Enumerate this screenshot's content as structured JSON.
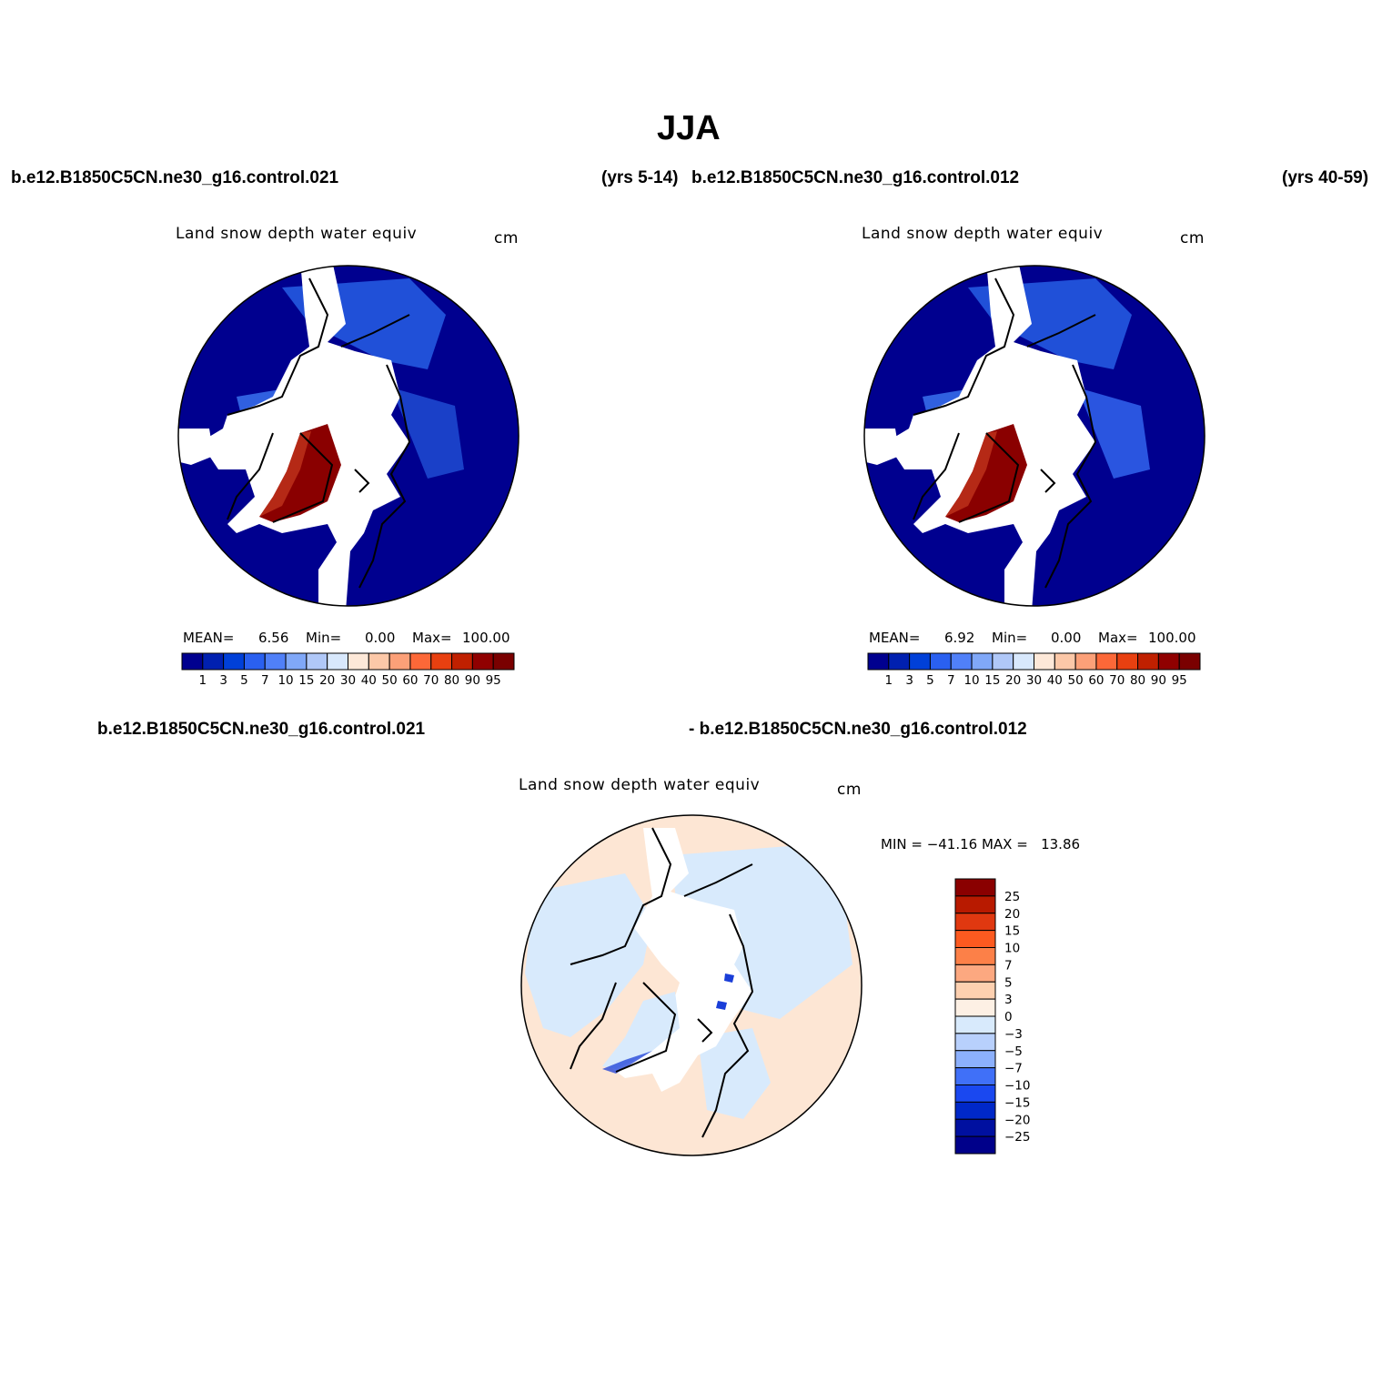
{
  "title": "JJA",
  "top_left_case": "b.e12.B1850C5CN.ne30_g16.control.021",
  "top_left_years": "(yrs 5-14)",
  "top_right_case": "b.e12.B1850C5CN.ne30_g16.control.012",
  "top_right_years": "(yrs 40-59)",
  "bottom_case_a": "b.e12.B1850C5CN.ne30_g16.control.021",
  "bottom_case_b": "- b.e12.B1850C5CN.ne30_g16.control.012",
  "panels": [
    {
      "variable": "Land snow depth water equiv",
      "units": "cm",
      "mean_label": "MEAN=",
      "mean": "6.56",
      "min_label": "Min=",
      "min": "0.00",
      "max_label": "Max=",
      "max": "100.00"
    },
    {
      "variable": "Land snow depth water equiv",
      "units": "cm",
      "mean_label": "MEAN=",
      "mean": "6.92",
      "min_label": "Min=",
      "min": "0.00",
      "max_label": "Max=",
      "max": "100.00"
    }
  ],
  "diff_panel": {
    "variable": "Land snow depth water equiv",
    "units": "cm",
    "minmax": "MIN = −41.16 MAX =   13.86"
  },
  "colorbar_levels": [
    "1",
    "3",
    "5",
    "7",
    "10",
    "15",
    "20",
    "30",
    "40",
    "50",
    "60",
    "70",
    "80",
    "90",
    "95"
  ],
  "colorbar_colors": [
    "#00008f",
    "#0020b0",
    "#0040d8",
    "#2a60f0",
    "#5080f8",
    "#80a8f8",
    "#b0c8f8",
    "#d8e8fc",
    "#fde8d8",
    "#fcc8a8",
    "#fca078",
    "#fc6838",
    "#e84010",
    "#c02000",
    "#900000",
    "#7a0000"
  ],
  "diff_levels": [
    "25",
    "20",
    "15",
    "10",
    "7",
    "5",
    "3",
    "0",
    "−3",
    "−5",
    "−7",
    "−10",
    "−15",
    "−20",
    "−25"
  ],
  "diff_colors": [
    "#8a0000",
    "#b81a00",
    "#e03810",
    "#fc5a20",
    "#fc8048",
    "#fca880",
    "#fdd0b0",
    "#fdf0e4",
    "#d8eafc",
    "#b8d0fc",
    "#8cb0fc",
    "#4070f8",
    "#1a48f0",
    "#0028c8",
    "#0010a0",
    "#00008a"
  ],
  "map_colors": {
    "deep_snow": "#00008f",
    "mid_snow": "#2050d8",
    "light_snow": "#6090f0",
    "greenland": "#8a0000",
    "greenland_edge": "#c83a20",
    "diff_pos": "#fde6d4",
    "diff_neg": "#d8eafc",
    "diff_strong_neg": "#1a3ed8"
  }
}
